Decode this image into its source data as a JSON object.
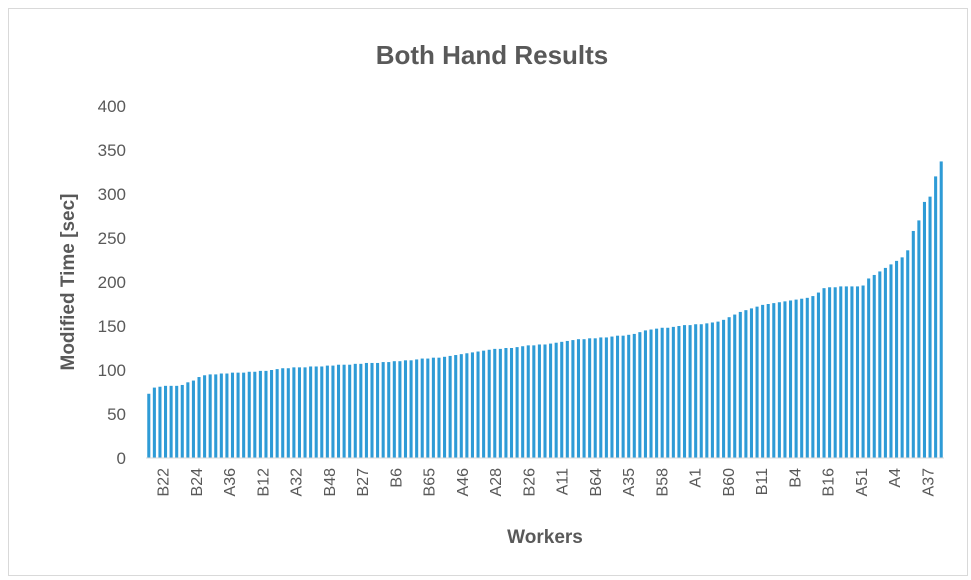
{
  "chart_data": {
    "type": "bar",
    "title": "Both Hand Results",
    "xlabel": "Workers",
    "ylabel": "Modified Time [sec]",
    "ylim": [
      0,
      400
    ],
    "yticks": [
      0,
      50,
      100,
      150,
      200,
      250,
      300,
      350,
      400
    ],
    "grid": false,
    "legend": "none",
    "bar_color": "#2e9bd6",
    "category_labels_shown": [
      "B22",
      "B24",
      "A36",
      "B12",
      "A32",
      "B48",
      "B27",
      "B6",
      "B65",
      "A46",
      "A28",
      "B26",
      "A11",
      "B64",
      "A35",
      "B58",
      "A1",
      "B60",
      "B11",
      "B4",
      "B16",
      "A51",
      "A4",
      "A37"
    ],
    "values": [
      73,
      80,
      81,
      82,
      82,
      82,
      83,
      86,
      88,
      92,
      94,
      95,
      95,
      96,
      96,
      97,
      97,
      97,
      98,
      98,
      99,
      99,
      100,
      101,
      102,
      102,
      103,
      103,
      103,
      104,
      104,
      104,
      105,
      105,
      106,
      106,
      106,
      107,
      107,
      108,
      108,
      108,
      109,
      109,
      110,
      110,
      111,
      111,
      112,
      113,
      113,
      114,
      114,
      115,
      116,
      117,
      118,
      119,
      120,
      121,
      122,
      123,
      124,
      124,
      125,
      125,
      126,
      127,
      128,
      128,
      129,
      129,
      130,
      131,
      132,
      133,
      134,
      135,
      135,
      136,
      136,
      137,
      137,
      138,
      139,
      139,
      140,
      141,
      143,
      145,
      146,
      147,
      148,
      148,
      149,
      150,
      151,
      151,
      152,
      152,
      153,
      154,
      155,
      157,
      160,
      163,
      166,
      168,
      170,
      172,
      174,
      175,
      176,
      177,
      178,
      179,
      180,
      181,
      182,
      184,
      188,
      193,
      194,
      194,
      195,
      195,
      195,
      195,
      196,
      204,
      208,
      212,
      216,
      220,
      224,
      228,
      236,
      258,
      270,
      291,
      297,
      320,
      337
    ]
  }
}
